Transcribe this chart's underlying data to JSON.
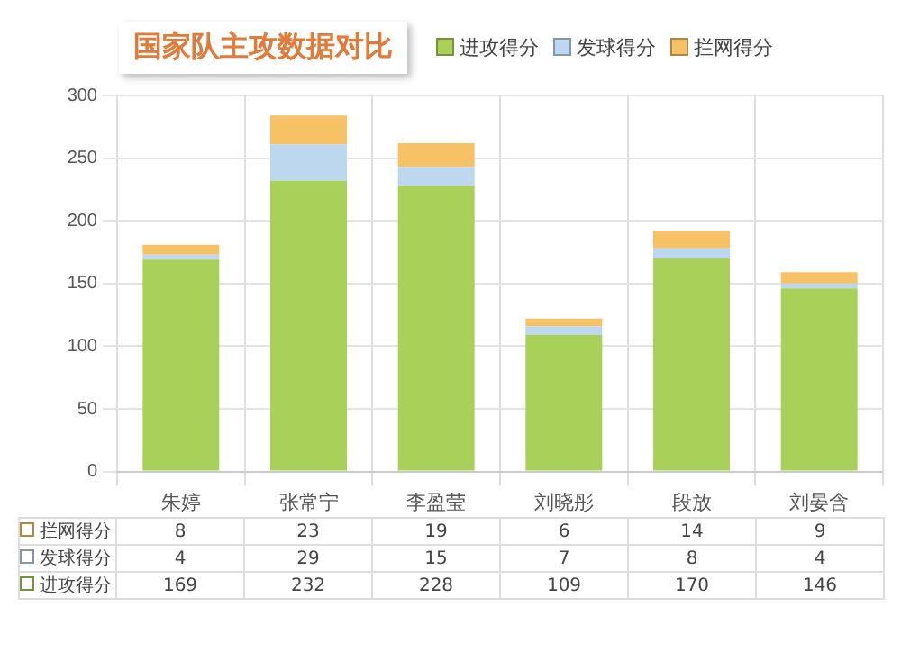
{
  "chart_data": {
    "type": "bar",
    "title": "国家队主攻数据对比",
    "categories": [
      "朱婷",
      "张常宁",
      "李盈莹",
      "刘晓彤",
      "段放",
      "刘晏含"
    ],
    "series": [
      {
        "name": "进攻得分",
        "color": "#a9d15a",
        "values": [
          169,
          232,
          228,
          109,
          170,
          146
        ]
      },
      {
        "name": "发球得分",
        "color": "#bdd7ee",
        "values": [
          4,
          29,
          15,
          7,
          8,
          4
        ]
      },
      {
        "name": "拦网得分",
        "color": "#f7c165",
        "values": [
          8,
          23,
          19,
          6,
          14,
          9
        ]
      }
    ],
    "stacked": true,
    "data_labels": true,
    "ylim": [
      0,
      300
    ],
    "yticks": [
      0,
      50,
      100,
      150,
      200,
      250,
      300
    ],
    "grid": true,
    "legend": "top"
  }
}
